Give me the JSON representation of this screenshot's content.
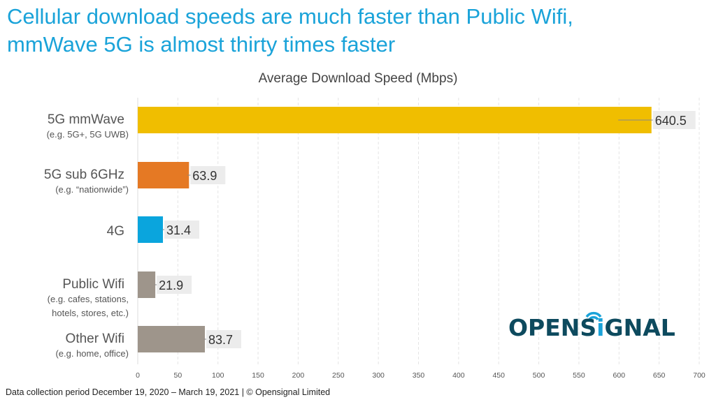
{
  "title_line1": "Cellular download speeds are much faster than Public Wifi,",
  "title_line2": "mmWave 5G is almost thirty times faster",
  "footer": "Data collection period December 19, 2020 – March 19, 2021  |  © Opensignal Limited",
  "logo": "OPENSIGNAL",
  "chart_data": {
    "type": "bar",
    "orientation": "horizontal",
    "title": "Average Download Speed (Mbps)",
    "categories": [
      "5G mmWave",
      "5G sub 6GHz",
      "4G",
      "Public Wifi",
      "Other Wifi"
    ],
    "sublabels": [
      [
        "(e.g. 5G+, 5G UWB)"
      ],
      [
        "(e.g. “nationwide”)"
      ],
      [],
      [
        "(e.g. cafes, stations,",
        "hotels, stores, etc.)"
      ],
      [
        "(e.g. home, office)"
      ]
    ],
    "values": [
      640.5,
      63.9,
      31.4,
      21.9,
      83.7
    ],
    "data_labels": [
      "640.5",
      "63.9",
      "31.4",
      "21.9",
      "83.7"
    ],
    "error_low": [
      599,
      62,
      30.8,
      20.9,
      82.5
    ],
    "colors": [
      "#f0be00",
      "#e57924",
      "#0aa5dd",
      "#9e958b",
      "#9e958b"
    ],
    "xlim": [
      0,
      700
    ],
    "xticks": [
      0,
      50,
      100,
      150,
      200,
      250,
      300,
      350,
      400,
      450,
      500,
      550,
      600,
      650,
      700
    ],
    "grid": true
  }
}
